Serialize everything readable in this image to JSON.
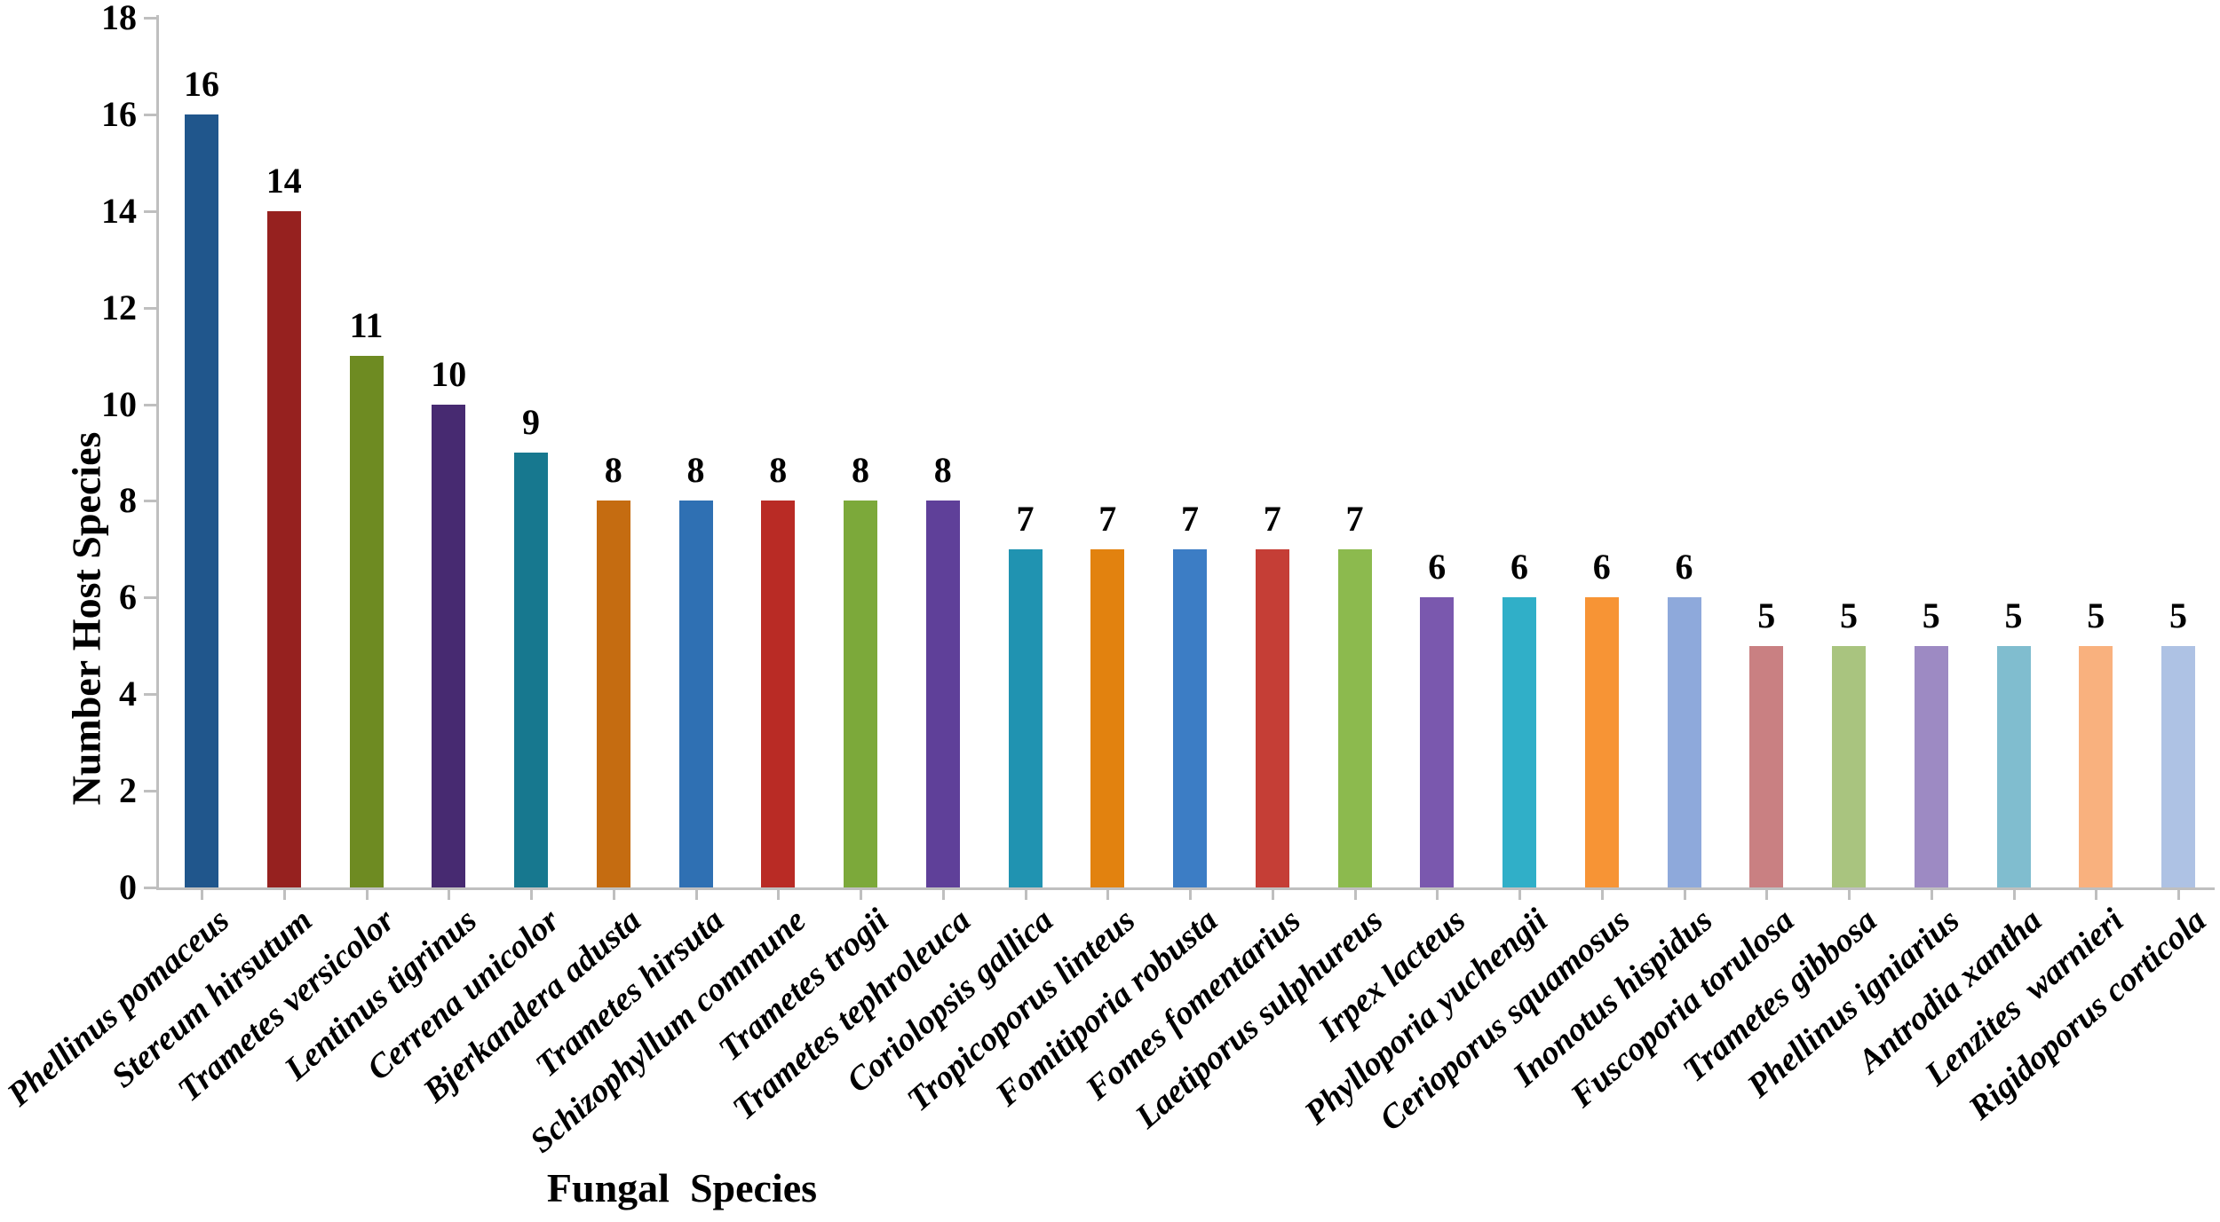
{
  "chart_data": {
    "type": "bar",
    "title": "",
    "xlabel": "Fungal  Species",
    "ylabel": "Number Host Species",
    "ylim": [
      0,
      18
    ],
    "yticks": [
      0,
      2,
      4,
      6,
      8,
      10,
      12,
      14,
      16,
      18
    ],
    "grid": false,
    "legend": "none",
    "value_labels_shown": true,
    "categories": [
      "Phellinus pomaceus",
      "Stereum hirsutum",
      "Trametes versicolor",
      "Lentinus tigrinus",
      "Cerrena unicolor",
      "Bjerkandera adusta",
      "Trametes hirsuta",
      "Schizophyllum commune",
      "Trametes trogii",
      "Trametes tephroleuca",
      "Coriolopsis gallica",
      "Tropicoporus linteus",
      "Fomitiporia robusta",
      "Fomes fomentarius",
      "Laetiporus sulphureus",
      "Irpex lacteus",
      "Phylloporia yuchengii",
      "Cerioporus squamosus",
      "Inonotus hispidus",
      "Fuscoporia torulosa",
      "Trametes gibbosa",
      "Phellinus igniarius",
      "Antrodia xantha",
      "Lenzites  warnieri",
      "Rigidoporus corticola"
    ],
    "values": [
      16,
      14,
      11,
      10,
      9,
      8,
      8,
      8,
      8,
      8,
      7,
      7,
      7,
      7,
      7,
      6,
      6,
      6,
      6,
      5,
      5,
      5,
      5,
      5,
      5
    ],
    "bar_colors": [
      "#20568C",
      "#96211F",
      "#6E8B22",
      "#472A71",
      "#17788F",
      "#C56C11",
      "#2F70B3",
      "#B92B25",
      "#7CA93A",
      "#5F4099",
      "#2093B1",
      "#E2820F",
      "#3C7DC5",
      "#C53E36",
      "#8CBA4E",
      "#7A58AE",
      "#30AFC8",
      "#F79435",
      "#8EA9DB",
      "#C98082",
      "#A9C47F",
      "#9D8AC3",
      "#80BDCF",
      "#F9B17E",
      "#AEC2E4"
    ],
    "axis_line_color": "#BFBFBF",
    "text_color": "#000000",
    "background_color": "#FFFFFF"
  }
}
